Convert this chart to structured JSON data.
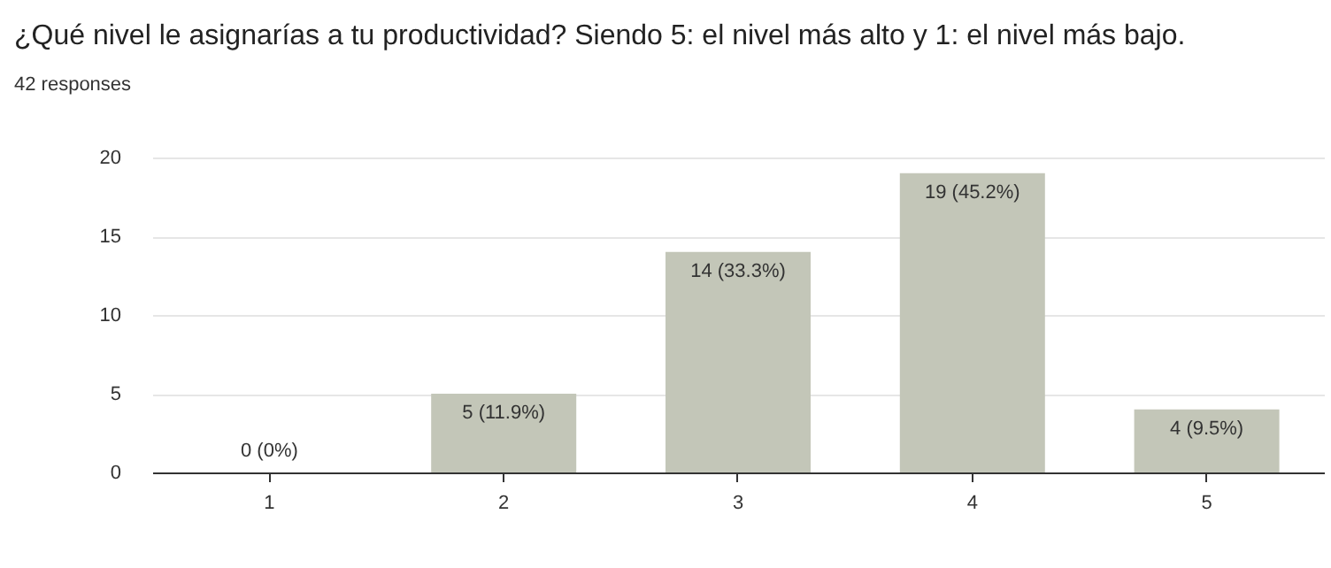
{
  "chart_data": {
    "type": "bar",
    "title": "¿Qué nivel le asignarías a tu productividad? Siendo 5: el nivel más alto y 1: el nivel más bajo.",
    "subtitle": "42 responses",
    "categories": [
      "1",
      "2",
      "3",
      "4",
      "5"
    ],
    "values": [
      0,
      5,
      14,
      19,
      4
    ],
    "color": "#c3c6b8",
    "value_labels": [
      "0 (0%)",
      "5 (11.9%)",
      "14 (33.3%)",
      "19 (45.2%)",
      "4 (9.5%)"
    ],
    "ylim": [
      0,
      20
    ],
    "yticks": [
      0,
      5,
      10,
      15,
      20
    ],
    "grid": "y"
  }
}
